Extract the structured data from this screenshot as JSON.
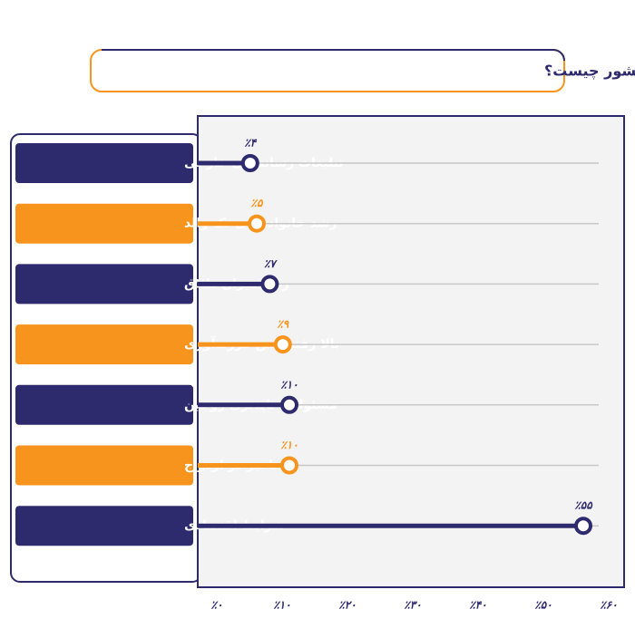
{
  "chart_data": {
    "type": "lollipop",
    "title": "به نظر شما مهمترین موانع فرزندآوری در کشور چیست؟",
    "categories": [
      "تبلیغات رسانه‌های خارجی",
      "رشد خانواده‌های تک والد",
      "رشد میزان طلاق",
      "بالا رفتن سن فرزندآوری",
      "مسئولیت ناپذیری زوجین",
      "تاخیر در ازدواج",
      "شرایط اقتصادی"
    ],
    "values": [
      4,
      5,
      7,
      9,
      10,
      10,
      55
    ],
    "value_labels": [
      "٪۴",
      "٪۵",
      "٪۷",
      "٪۹",
      "٪۱۰",
      "٪۱۰",
      "٪۵۵"
    ],
    "colors": [
      "#2e2a6e",
      "#f7941d",
      "#2e2a6e",
      "#f7941d",
      "#2e2a6e",
      "#f7941d",
      "#2e2a6e"
    ],
    "xlim": [
      0,
      60
    ],
    "xticks": [
      {
        "value": 0,
        "label": "٪۰"
      },
      {
        "value": 10,
        "label": "٪۱۰"
      },
      {
        "value": 20,
        "label": "٪۲۰"
      },
      {
        "value": 30,
        "label": "٪۳۰"
      },
      {
        "value": 40,
        "label": "٪۴۰"
      },
      {
        "value": 50,
        "label": "٪۵۰"
      },
      {
        "value": 60,
        "label": "٪۶۰"
      }
    ]
  }
}
